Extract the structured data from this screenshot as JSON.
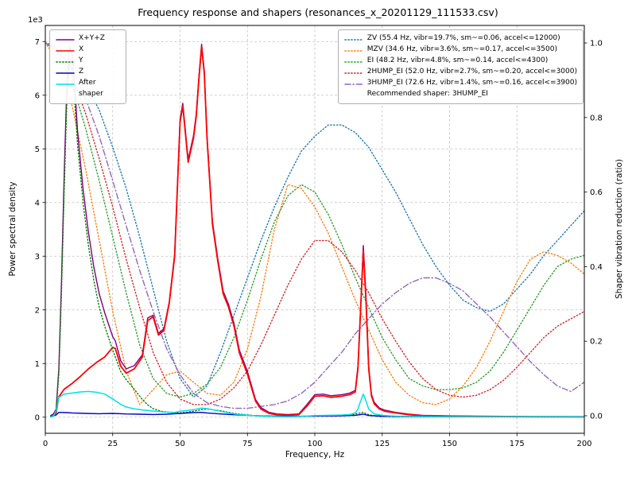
{
  "chart_data": {
    "type": "line",
    "title": "Frequency response and shapers (resonances_x_20201129_111533.csv)",
    "xlabel": "Frequency, Hz",
    "ylabel_left": "Power spectral density",
    "ylabel_right": "Shaper vibration reduction (ratio)",
    "y_offset_text": "1e3",
    "grid": true,
    "legend_position_left": "upper left",
    "legend_position_right": "upper right",
    "recommended_text": "Recommended shaper: 3HUMP_EI",
    "xlim": [
      0,
      200
    ],
    "ylim_left": [
      -300,
      7300
    ],
    "ylim_right": [
      -0.047,
      1.047
    ],
    "x_ticks": [
      0,
      25,
      50,
      75,
      100,
      125,
      150,
      175,
      200
    ],
    "y_ticks_left": [
      0,
      1000,
      2000,
      3000,
      4000,
      5000,
      6000,
      7000
    ],
    "y_tick_labels_left": [
      "0",
      "1",
      "2",
      "3",
      "4",
      "5",
      "6",
      "7"
    ],
    "y_ticks_right": [
      0,
      0.2,
      0.4,
      0.6,
      0.8,
      1.0
    ],
    "y_tick_labels_right": [
      "0.0",
      "0.2",
      "0.4",
      "0.6",
      "0.8",
      "1.0"
    ],
    "grid_color": "#bfbfbf",
    "psd_series": [
      {
        "name": "X+Y+Z",
        "color": "#800080",
        "style": "solid",
        "width": 1.4,
        "x": [
          2,
          3,
          4,
          5,
          6,
          7,
          8,
          9,
          10,
          11,
          12,
          14,
          16,
          18,
          20,
          22,
          25,
          26,
          28,
          30,
          33,
          36,
          38,
          40,
          42,
          44,
          46,
          48,
          50,
          51,
          53,
          55,
          56,
          57,
          58,
          59,
          60,
          62,
          64,
          66,
          68,
          70,
          72,
          75,
          78,
          80,
          83,
          86,
          90,
          94,
          97,
          100,
          103,
          106,
          110,
          113,
          115,
          116,
          117,
          118,
          119,
          120,
          121,
          122,
          124,
          126,
          128,
          130,
          135,
          140,
          150,
          160,
          180,
          200
        ],
        "y": [
          30,
          60,
          150,
          900,
          2500,
          4500,
          6200,
          6900,
          6750,
          6100,
          5300,
          4250,
          3450,
          2800,
          2300,
          1950,
          1500,
          1420,
          1050,
          900,
          960,
          1160,
          1850,
          1900,
          1560,
          1650,
          2150,
          3050,
          5550,
          5850,
          4800,
          5250,
          5650,
          6350,
          6950,
          6450,
          5250,
          3650,
          2950,
          2350,
          2100,
          1750,
          1250,
          850,
          330,
          180,
          90,
          60,
          50,
          60,
          230,
          420,
          430,
          400,
          420,
          450,
          500,
          950,
          2050,
          3200,
          2250,
          950,
          430,
          280,
          170,
          130,
          110,
          90,
          55,
          35,
          25,
          18,
          12,
          10
        ]
      },
      {
        "name": "X",
        "color": "#ff0000",
        "style": "solid",
        "width": 1.8,
        "x": [
          2,
          3,
          4,
          5,
          7,
          10,
          13,
          16,
          19,
          22,
          25,
          26,
          28,
          30,
          33,
          36,
          38,
          40,
          42,
          44,
          46,
          48,
          50,
          51,
          53,
          55,
          56,
          57,
          58,
          59,
          60,
          62,
          64,
          66,
          68,
          70,
          72,
          75,
          78,
          80,
          83,
          86,
          90,
          94,
          97,
          100,
          103,
          106,
          110,
          113,
          115,
          116,
          117,
          118,
          119,
          120,
          121,
          122,
          124,
          126,
          128,
          130,
          135,
          140,
          150,
          160,
          180,
          200
        ],
        "y": [
          15,
          25,
          80,
          380,
          520,
          630,
          760,
          900,
          1020,
          1120,
          1300,
          1280,
          950,
          820,
          900,
          1120,
          1800,
          1870,
          1530,
          1620,
          2120,
          3000,
          5500,
          5800,
          4750,
          5200,
          5600,
          6300,
          6900,
          6400,
          5200,
          3600,
          2900,
          2300,
          2050,
          1700,
          1200,
          800,
          300,
          150,
          70,
          45,
          35,
          45,
          200,
          390,
          400,
          370,
          390,
          420,
          470,
          900,
          2000,
          3100,
          2150,
          900,
          400,
          250,
          150,
          110,
          95,
          80,
          45,
          28,
          18,
          12,
          8,
          6
        ]
      },
      {
        "name": "Y",
        "color": "#008000",
        "style": "dotted",
        "width": 1.4,
        "x": [
          2,
          3,
          4,
          5,
          6,
          7,
          8,
          9,
          10,
          11,
          12,
          14,
          16,
          18,
          20,
          22,
          25,
          28,
          30,
          33,
          36,
          38,
          40,
          43,
          46,
          50,
          53,
          56,
          58,
          60,
          62,
          65,
          68,
          70,
          75,
          80,
          85,
          90,
          95,
          100,
          105,
          110,
          114,
          116,
          118,
          120,
          123,
          126,
          130,
          140,
          150,
          160,
          180,
          200
        ],
        "y": [
          20,
          40,
          120,
          800,
          2300,
          4200,
          5900,
          6600,
          6450,
          5800,
          5050,
          4000,
          3200,
          2550,
          2050,
          1700,
          1250,
          850,
          700,
          520,
          330,
          230,
          160,
          110,
          90,
          80,
          95,
          120,
          140,
          150,
          140,
          120,
          90,
          70,
          40,
          20,
          12,
          10,
          15,
          25,
          30,
          35,
          45,
          70,
          90,
          45,
          18,
          12,
          8,
          6,
          5,
          4,
          3,
          3
        ]
      },
      {
        "name": "Z",
        "color": "#0000cc",
        "style": "solid",
        "width": 1.4,
        "x": [
          2,
          4,
          5,
          8,
          10,
          15,
          20,
          25,
          30,
          35,
          40,
          45,
          50,
          55,
          58,
          60,
          65,
          70,
          75,
          80,
          90,
          100,
          110,
          115,
          118,
          120,
          125,
          130,
          140,
          150,
          170,
          200
        ],
        "y": [
          10,
          40,
          90,
          85,
          80,
          70,
          65,
          70,
          60,
          55,
          50,
          55,
          70,
          85,
          90,
          80,
          60,
          45,
          35,
          25,
          15,
          20,
          25,
          35,
          55,
          30,
          18,
          14,
          10,
          8,
          6,
          5
        ]
      },
      {
        "name": "After shaper",
        "color": "#00e0e8",
        "style": "solid",
        "width": 1.5,
        "x": [
          2,
          3,
          4,
          5,
          7,
          10,
          13,
          16,
          19,
          22,
          25,
          28,
          30,
          33,
          36,
          40,
          44,
          48,
          50,
          52,
          55,
          57,
          58,
          60,
          62,
          65,
          68,
          70,
          75,
          80,
          85,
          90,
          95,
          100,
          105,
          110,
          113,
          115,
          116,
          117,
          118,
          119,
          120,
          122,
          125,
          128,
          130,
          135,
          140,
          150,
          160,
          180,
          200
        ],
        "y": [
          5,
          15,
          120,
          370,
          430,
          450,
          470,
          480,
          465,
          430,
          340,
          240,
          190,
          155,
          135,
          115,
          95,
          90,
          110,
          120,
          140,
          160,
          170,
          160,
          140,
          110,
          80,
          60,
          35,
          20,
          12,
          10,
          15,
          30,
          35,
          40,
          50,
          80,
          150,
          300,
          430,
          300,
          150,
          60,
          35,
          25,
          20,
          15,
          12,
          10,
          8,
          6,
          5
        ]
      }
    ],
    "shaper_x": [
      0,
      5,
      10,
      15,
      20,
      25,
      30,
      35,
      40,
      45,
      50,
      55,
      60,
      65,
      70,
      75,
      80,
      85,
      90,
      95,
      100,
      105,
      110,
      115,
      120,
      125,
      130,
      135,
      140,
      145,
      150,
      155,
      160,
      165,
      170,
      175,
      180,
      185,
      190,
      195,
      200
    ],
    "shaper_series": [
      {
        "name": "ZV",
        "label": "ZV (55.4 Hz, vibr=19.7%, sm~=0.06, accel<=12000)",
        "color": "#1f77b4",
        "style": "dotted",
        "width": 1.4,
        "y": [
          1.0,
          0.99,
          0.95,
          0.89,
          0.82,
          0.72,
          0.61,
          0.48,
          0.34,
          0.2,
          0.1,
          0.05,
          0.08,
          0.17,
          0.27,
          0.37,
          0.47,
          0.56,
          0.64,
          0.71,
          0.75,
          0.78,
          0.78,
          0.76,
          0.72,
          0.66,
          0.6,
          0.53,
          0.46,
          0.4,
          0.35,
          0.31,
          0.29,
          0.28,
          0.3,
          0.34,
          0.38,
          0.43,
          0.47,
          0.51,
          0.55
        ]
      },
      {
        "name": "MZV",
        "label": "MZV (34.6 Hz, vibr=3.6%, sm~=0.17, accel<=3500)",
        "color": "#ff7f0e",
        "style": "dotted",
        "width": 1.4,
        "y": [
          1.0,
          0.95,
          0.83,
          0.66,
          0.47,
          0.28,
          0.12,
          0.03,
          0.07,
          0.11,
          0.12,
          0.09,
          0.06,
          0.055,
          0.09,
          0.18,
          0.32,
          0.5,
          0.62,
          0.61,
          0.56,
          0.49,
          0.4,
          0.31,
          0.23,
          0.15,
          0.09,
          0.055,
          0.035,
          0.03,
          0.045,
          0.08,
          0.13,
          0.2,
          0.28,
          0.36,
          0.42,
          0.44,
          0.43,
          0.41,
          0.38
        ]
      },
      {
        "name": "EI",
        "label": "EI (48.2 Hz, vibr=4.8%, sm~=0.14, accel<=4300)",
        "color": "#2ca02c",
        "style": "dotted",
        "width": 1.4,
        "y": [
          1.0,
          0.97,
          0.89,
          0.77,
          0.63,
          0.48,
          0.33,
          0.19,
          0.1,
          0.06,
          0.05,
          0.06,
          0.085,
          0.13,
          0.21,
          0.31,
          0.42,
          0.52,
          0.59,
          0.62,
          0.6,
          0.54,
          0.46,
          0.37,
          0.29,
          0.21,
          0.15,
          0.1,
          0.08,
          0.07,
          0.07,
          0.075,
          0.09,
          0.12,
          0.17,
          0.23,
          0.29,
          0.35,
          0.4,
          0.42,
          0.43
        ]
      },
      {
        "name": "2HUMP_EI",
        "label": "2HUMP_EI (52.0 Hz, vibr=2.7%, sm~=0.20, accel<=3000)",
        "color": "#d62728",
        "style": "dotted",
        "width": 1.4,
        "y": [
          1.0,
          0.98,
          0.91,
          0.81,
          0.69,
          0.56,
          0.42,
          0.29,
          0.17,
          0.09,
          0.045,
          0.03,
          0.03,
          0.045,
          0.075,
          0.12,
          0.19,
          0.27,
          0.35,
          0.42,
          0.47,
          0.47,
          0.44,
          0.39,
          0.33,
          0.26,
          0.2,
          0.145,
          0.1,
          0.07,
          0.055,
          0.05,
          0.055,
          0.07,
          0.095,
          0.13,
          0.17,
          0.21,
          0.24,
          0.26,
          0.28
        ]
      },
      {
        "name": "3HUMP_EI",
        "label": "3HUMP_EI (72.6 Hz, vibr=1.4%, sm~=0.16, accel<=3900)",
        "color": "#9467bd",
        "style": "dashdot",
        "width": 1.4,
        "y": [
          1.0,
          0.98,
          0.93,
          0.85,
          0.75,
          0.63,
          0.51,
          0.39,
          0.28,
          0.18,
          0.11,
          0.06,
          0.035,
          0.025,
          0.02,
          0.02,
          0.025,
          0.03,
          0.04,
          0.06,
          0.09,
          0.13,
          0.17,
          0.22,
          0.26,
          0.3,
          0.33,
          0.355,
          0.37,
          0.37,
          0.355,
          0.335,
          0.3,
          0.265,
          0.225,
          0.185,
          0.145,
          0.11,
          0.08,
          0.065,
          0.09
        ]
      }
    ]
  }
}
